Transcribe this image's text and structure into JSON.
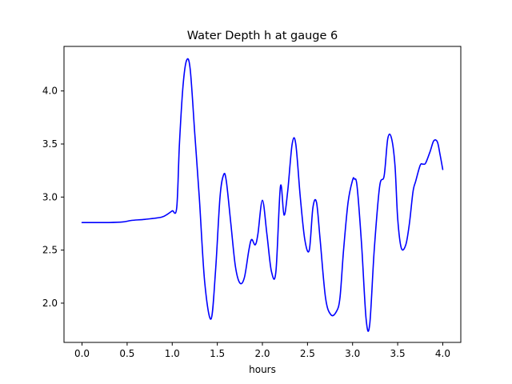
{
  "chart_data": {
    "type": "line",
    "title": "Water Depth h at gauge 6",
    "xlabel": "hours",
    "ylabel": "",
    "xlim": [
      -0.2,
      4.2
    ],
    "ylim": [
      1.63,
      4.42
    ],
    "grid": false,
    "legend": "none",
    "x_ticks": [
      0.0,
      0.5,
      1.0,
      1.5,
      2.0,
      2.5,
      3.0,
      3.5,
      4.0
    ],
    "x_tick_labels": [
      "0.0",
      "0.5",
      "1.0",
      "1.5",
      "2.0",
      "2.5",
      "3.0",
      "3.5",
      "4.0"
    ],
    "y_ticks": [
      2.0,
      2.5,
      3.0,
      3.5,
      4.0
    ],
    "y_tick_labels": [
      "2.0",
      "2.5",
      "3.0",
      "3.5",
      "4.0"
    ],
    "series": [
      {
        "name": "h",
        "color": "#0000ff",
        "x": [
          0.0,
          0.3,
          0.45,
          0.55,
          0.7,
          0.88,
          0.95,
          1.0,
          1.05,
          1.08,
          1.12,
          1.16,
          1.2,
          1.25,
          1.3,
          1.36,
          1.43,
          1.48,
          1.53,
          1.57,
          1.6,
          1.65,
          1.7,
          1.75,
          1.8,
          1.85,
          1.88,
          1.92,
          1.95,
          2.0,
          2.05,
          2.1,
          2.15,
          2.2,
          2.24,
          2.28,
          2.33,
          2.37,
          2.42,
          2.47,
          2.52,
          2.56,
          2.6,
          2.64,
          2.7,
          2.76,
          2.82,
          2.86,
          2.9,
          2.95,
          3.0,
          3.02,
          3.05,
          3.1,
          3.15,
          3.19,
          3.24,
          3.3,
          3.35,
          3.39,
          3.43,
          3.47,
          3.5,
          3.54,
          3.59,
          3.63,
          3.67,
          3.7,
          3.75,
          3.78,
          3.81,
          3.86,
          3.9,
          3.94,
          3.97,
          4.0
        ],
        "values": [
          2.76,
          2.76,
          2.765,
          2.78,
          2.79,
          2.81,
          2.84,
          2.87,
          2.9,
          3.5,
          4.05,
          4.29,
          4.2,
          3.6,
          3.0,
          2.2,
          1.85,
          2.3,
          3.0,
          3.21,
          3.15,
          2.75,
          2.35,
          2.19,
          2.24,
          2.5,
          2.6,
          2.55,
          2.65,
          2.97,
          2.65,
          2.3,
          2.3,
          3.1,
          2.83,
          3.05,
          3.5,
          3.5,
          3.0,
          2.6,
          2.5,
          2.9,
          2.95,
          2.6,
          2.05,
          1.89,
          1.92,
          2.05,
          2.5,
          2.95,
          3.16,
          3.17,
          3.1,
          2.55,
          1.85,
          1.8,
          2.5,
          3.1,
          3.2,
          3.55,
          3.56,
          3.3,
          2.8,
          2.52,
          2.55,
          2.75,
          3.05,
          3.15,
          3.3,
          3.31,
          3.32,
          3.43,
          3.53,
          3.52,
          3.4,
          3.26
        ]
      }
    ]
  }
}
